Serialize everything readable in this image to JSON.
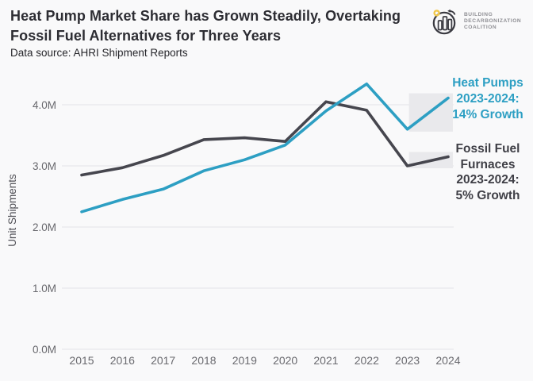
{
  "header": {
    "title": "Heat Pump Market Share has Grown Steadily, Overtaking Fossil Fuel Alternatives for Three Years",
    "subtitle": "Data source: AHRI Shipment Reports"
  },
  "logo": {
    "lines": [
      "BUILDING",
      "DECARBONIZATION",
      "COALITION"
    ],
    "sun_color": "#f2c84b",
    "mark_color": "#3a3a41"
  },
  "chart_data": {
    "type": "line",
    "title": "Heat Pump Market Share has Grown Steadily, Overtaking Fossil Fuel Alternatives for Three Years",
    "source": "Data source: AHRI Shipment Reports",
    "xlabel": "",
    "ylabel": "Unit Shipments",
    "x": [
      2015,
      2016,
      2017,
      2018,
      2019,
      2020,
      2021,
      2022,
      2023,
      2024
    ],
    "series": [
      {
        "name": "Heat Pumps",
        "color": "#2d9fc3",
        "values": [
          2.25,
          2.45,
          2.62,
          2.92,
          3.1,
          3.34,
          3.9,
          4.34,
          3.6,
          4.11
        ]
      },
      {
        "name": "Fossil Fuel Furnaces",
        "color": "#46464e",
        "values": [
          2.85,
          2.97,
          3.17,
          3.43,
          3.46,
          3.4,
          4.05,
          3.91,
          3.0,
          3.15
        ]
      }
    ],
    "ylim": [
      0,
      4.4
    ],
    "yticks": [
      0,
      1,
      2,
      3,
      4
    ],
    "ytick_labels": [
      "0.0M",
      "1.0M",
      "2.0M",
      "3.0M",
      "4.0M"
    ],
    "grid": true,
    "legend_position": "none",
    "highlight_span": {
      "from": 2023,
      "to": 2024,
      "fill": "#e9e9ec"
    }
  },
  "annotations": {
    "heat_pumps": {
      "color": "#2d9fc3",
      "lines": [
        "Heat Pumps",
        "2023-2024:",
        "14% Growth"
      ]
    },
    "fossil": {
      "color": "#3f3f46",
      "lines": [
        "Fossil Fuel",
        "Furnaces",
        "2023-2024:",
        "5% Growth"
      ]
    }
  }
}
